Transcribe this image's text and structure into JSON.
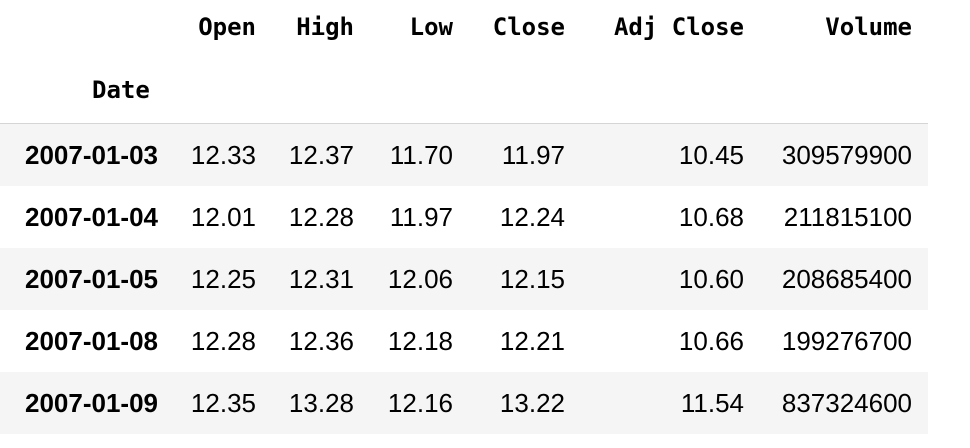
{
  "table": {
    "columns": [
      "Open",
      "High",
      "Low",
      "Close",
      "Adj Close",
      "Volume"
    ],
    "index_name": "Date",
    "rows": [
      {
        "date": "2007-01-03",
        "values": [
          "12.33",
          "12.37",
          "11.70",
          "11.97",
          "10.45",
          "309579900"
        ]
      },
      {
        "date": "2007-01-04",
        "values": [
          "12.01",
          "12.28",
          "11.97",
          "12.24",
          "10.68",
          "211815100"
        ]
      },
      {
        "date": "2007-01-05",
        "values": [
          "12.25",
          "12.31",
          "12.06",
          "12.15",
          "10.60",
          "208685400"
        ]
      },
      {
        "date": "2007-01-08",
        "values": [
          "12.28",
          "12.36",
          "12.18",
          "12.21",
          "10.66",
          "199276700"
        ]
      },
      {
        "date": "2007-01-09",
        "values": [
          "12.35",
          "13.28",
          "12.16",
          "13.22",
          "11.54",
          "837324600"
        ]
      }
    ]
  }
}
